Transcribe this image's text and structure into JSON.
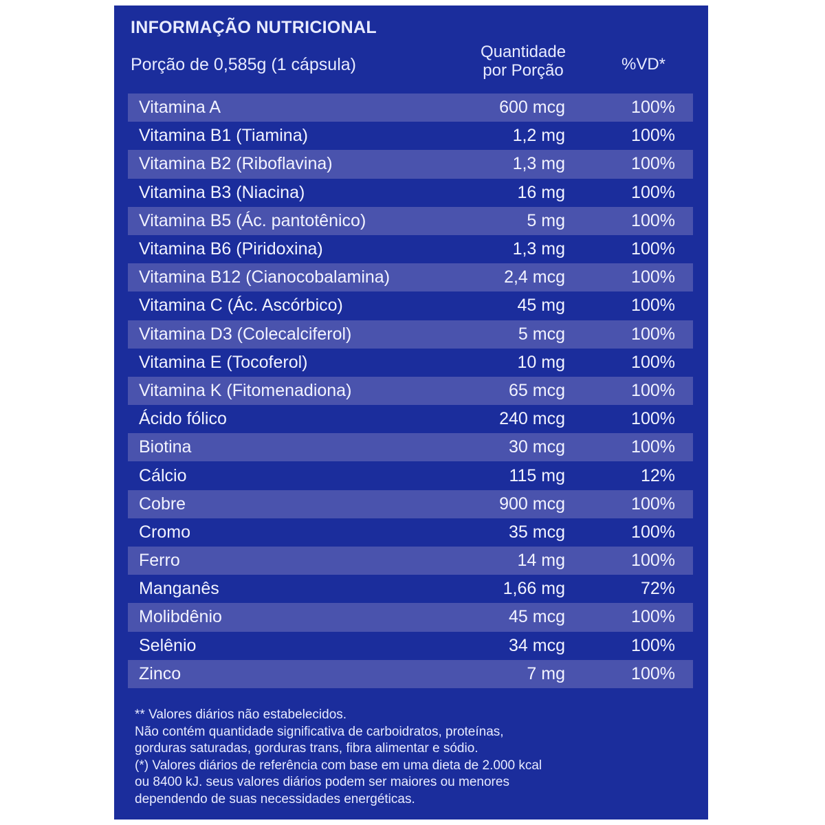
{
  "header": {
    "title": "INFORMAÇÃO NUTRICIONAL",
    "portion": "Porção de 0,585g  (1 cápsula)",
    "col_quantity_line1": "Quantidade",
    "col_quantity_line2": "por Porção",
    "col_vd": "%VD*"
  },
  "rows": [
    {
      "name": "Vitamina A",
      "qty": "600 mcg",
      "vd": "100%"
    },
    {
      "name": "Vitamina B1 (Tiamina)",
      "qty": "1,2 mg",
      "vd": "100%"
    },
    {
      "name": "Vitamina B2 (Riboflavina)",
      "qty": "1,3 mg",
      "vd": "100%"
    },
    {
      "name": "Vitamina B3 (Niacina)",
      "qty": "16 mg",
      "vd": "100%"
    },
    {
      "name": "Vitamina B5 (Ác. pantotênico)",
      "qty": "5 mg",
      "vd": "100%"
    },
    {
      "name": "Vitamina B6 (Piridoxina)",
      "qty": "1,3 mg",
      "vd": "100%"
    },
    {
      "name": "Vitamina B12 (Cianocobalamina)",
      "qty": "2,4 mcg",
      "vd": "100%"
    },
    {
      "name": "Vitamina C (Ác. Ascórbico)",
      "qty": "45 mg",
      "vd": "100%"
    },
    {
      "name": "Vitamina D3 (Colecalciferol)",
      "qty": "5 mcg",
      "vd": "100%"
    },
    {
      "name": "Vitamina E (Tocoferol)",
      "qty": "10 mg",
      "vd": "100%"
    },
    {
      "name": "Vitamina K (Fitomenadiona)",
      "qty": "65 mcg",
      "vd": "100%"
    },
    {
      "name": "Ácido fólico",
      "qty": "240 mcg",
      "vd": "100%"
    },
    {
      "name": "Biotina",
      "qty": "30 mcg",
      "vd": "100%"
    },
    {
      "name": "Cálcio",
      "qty": "115 mg",
      "vd": "12%"
    },
    {
      "name": "Cobre",
      "qty": "900 mcg",
      "vd": "100%"
    },
    {
      "name": "Cromo",
      "qty": "35 mcg",
      "vd": "100%"
    },
    {
      "name": "Ferro",
      "qty": "14 mg",
      "vd": "100%"
    },
    {
      "name": "Manganês",
      "qty": "1,66 mg",
      "vd": "72%"
    },
    {
      "name": "Molibdênio",
      "qty": "45 mcg",
      "vd": "100%"
    },
    {
      "name": "Selênio",
      "qty": "34 mcg",
      "vd": "100%"
    },
    {
      "name": "Zinco",
      "qty": "7 mg",
      "vd": "100%"
    }
  ],
  "footnotes": [
    "** Valores diários não estabelecidos.",
    "Não contém quantidade significativa de carboidratos, proteínas,",
    "gorduras saturadas, gorduras trans, fibra alimentar e sódio.",
    "(*) Valores diários de referência com base em uma dieta de 2.000 kcal",
    "ou 8400 kJ. seus valores diários podem ser maiores ou menores",
    "dependendo de suas necessidades energéticas."
  ],
  "colors": {
    "panel_background": "#1b2d9c",
    "row_stripe": "#4a53ad",
    "text": "#ffffff"
  }
}
